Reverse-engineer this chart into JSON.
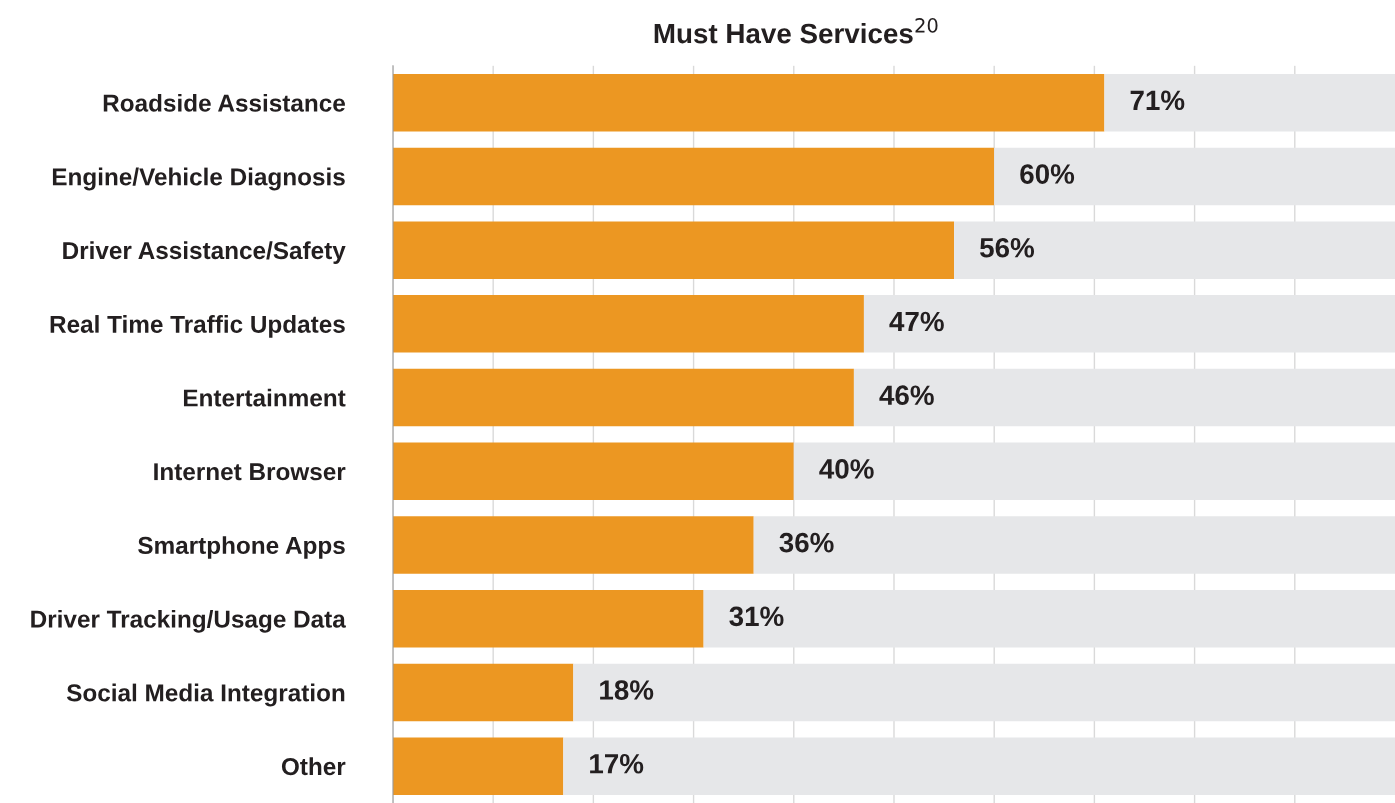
{
  "chart_data": {
    "type": "bar",
    "orientation": "horizontal",
    "stacked": true,
    "title": "Must Have Services$^{20}$",
    "categories": [
      "Roadside Assistance",
      "Engine/Vehicle Diagnosis",
      "Driver Assistance/Safety",
      "Real Time Traffic Updates",
      "Entertainment",
      "Internet Browser",
      "Smartphone Apps",
      "Driver Tracking/Usage Data",
      "Social Media Integration",
      "Other"
    ],
    "series": [
      {
        "color": "#ec9722",
        "values": [
          71,
          60,
          56,
          47,
          46,
          40,
          36,
          31,
          18,
          17
        ],
        "value_labels": [
          "71%",
          "60%",
          "56%",
          "47%",
          "46%",
          "40%",
          "36%",
          "31%",
          "18%",
          "17%"
        ]
      },
      {
        "color": "#e6e7e9",
        "values": [
          29,
          40,
          44,
          53,
          54,
          60,
          64,
          69,
          82,
          83
        ]
      }
    ],
    "xlim": [
      0,
      100
    ],
    "xticks": [
      {
        "value": 0,
        "label": null
      },
      {
        "value": 10,
        "label": null
      },
      {
        "value": 20,
        "label": null
      },
      {
        "value": 30,
        "label": null
      },
      {
        "value": 40,
        "label": null
      },
      {
        "value": 50,
        "label": null
      },
      {
        "value": 60,
        "label": null
      },
      {
        "value": 70,
        "label": null
      },
      {
        "value": 80,
        "label": null
      },
      {
        "value": 90,
        "label": null
      }
    ],
    "grid": "x",
    "tick_labels": "y"
  }
}
